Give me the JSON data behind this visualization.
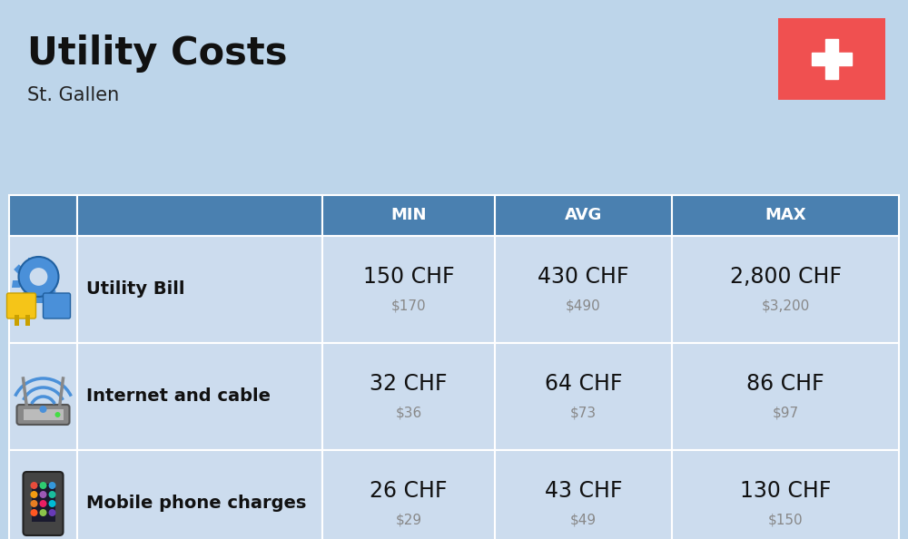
{
  "title": "Utility Costs",
  "subtitle": "St. Gallen",
  "background_color": "#bdd5ea",
  "header_color": "#4a80b0",
  "header_text_color": "#ffffff",
  "row_color": "#ccdcee",
  "col_headers": [
    "MIN",
    "AVG",
    "MAX"
  ],
  "rows": [
    {
      "label": "Utility Bill",
      "min_chf": "150 CHF",
      "min_usd": "$170",
      "avg_chf": "430 CHF",
      "avg_usd": "$490",
      "max_chf": "2,800 CHF",
      "max_usd": "$3,200",
      "icon": "utility"
    },
    {
      "label": "Internet and cable",
      "min_chf": "32 CHF",
      "min_usd": "$36",
      "avg_chf": "64 CHF",
      "avg_usd": "$73",
      "max_chf": "86 CHF",
      "max_usd": "$97",
      "icon": "internet"
    },
    {
      "label": "Mobile phone charges",
      "min_chf": "26 CHF",
      "min_usd": "$29",
      "avg_chf": "43 CHF",
      "avg_usd": "$49",
      "max_chf": "130 CHF",
      "max_usd": "$150",
      "icon": "mobile"
    }
  ],
  "flag_color": "#f05050",
  "title_fontsize": 30,
  "subtitle_fontsize": 15,
  "header_fontsize": 13,
  "cell_fontsize_main": 17,
  "cell_fontsize_sub": 11,
  "label_fontsize": 14
}
